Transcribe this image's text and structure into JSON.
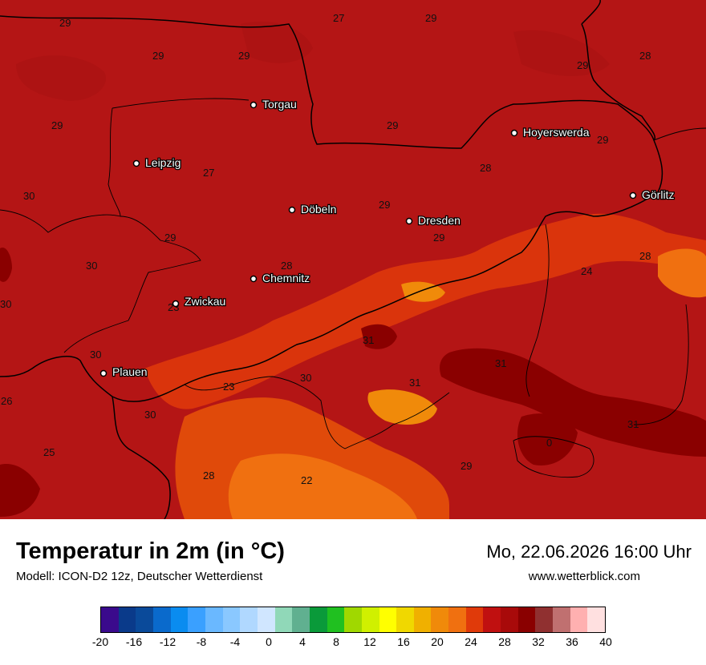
{
  "header": {
    "title": "Temperatur in 2m (in °C)",
    "subtitle": "Modell: ICON-D2 12z, Deutscher Wetterdienst",
    "datetime": "Mo, 22.06.2026 16:00 Uhr",
    "website": "www.wetterblick.com"
  },
  "map": {
    "base_color": "#b31414",
    "cities": [
      {
        "name": "Torgau"
      },
      {
        "name": "Hoyerswerda"
      },
      {
        "name": "Leipzig"
      },
      {
        "name": "Görlitz"
      },
      {
        "name": "Döbeln"
      },
      {
        "name": "Dresden"
      },
      {
        "name": "Chemnitz"
      },
      {
        "name": "Zwickau"
      },
      {
        "name": "Plauen"
      }
    ],
    "values": [
      "29",
      "27",
      "29",
      "29",
      "29",
      "29",
      "28",
      "29",
      "29",
      "29",
      "28",
      "27",
      "29",
      "30",
      "29",
      "29",
      "28",
      "30",
      "28",
      "24",
      "23",
      "31",
      "31",
      "30",
      "30",
      "23",
      "31",
      "30",
      "26",
      "30",
      "31",
      "25",
      "29",
      "28",
      "22",
      "0"
    ]
  },
  "legend": {
    "ticks": [
      "-20",
      "-16",
      "-12",
      "-8",
      "-4",
      "0",
      "4",
      "8",
      "12",
      "16",
      "20",
      "24",
      "28",
      "32",
      "36",
      "40"
    ],
    "colors": [
      "#3a0a8c",
      "#0a3a8a",
      "#0a4a9a",
      "#0a6acc",
      "#0a8cf0",
      "#3aa0ff",
      "#6ab8ff",
      "#8ac8ff",
      "#b0d8ff",
      "#d0e6ff",
      "#90d8b8",
      "#60b090",
      "#0a9a3a",
      "#20c020",
      "#a0d800",
      "#d0f000",
      "#ffff00",
      "#f0d800",
      "#f0b000",
      "#f08a0a",
      "#f07010",
      "#e03a0a",
      "#c01010",
      "#a80a0a",
      "#8a0000",
      "#903030",
      "#c07070",
      "#ffb0b0",
      "#ffe0e0"
    ]
  }
}
